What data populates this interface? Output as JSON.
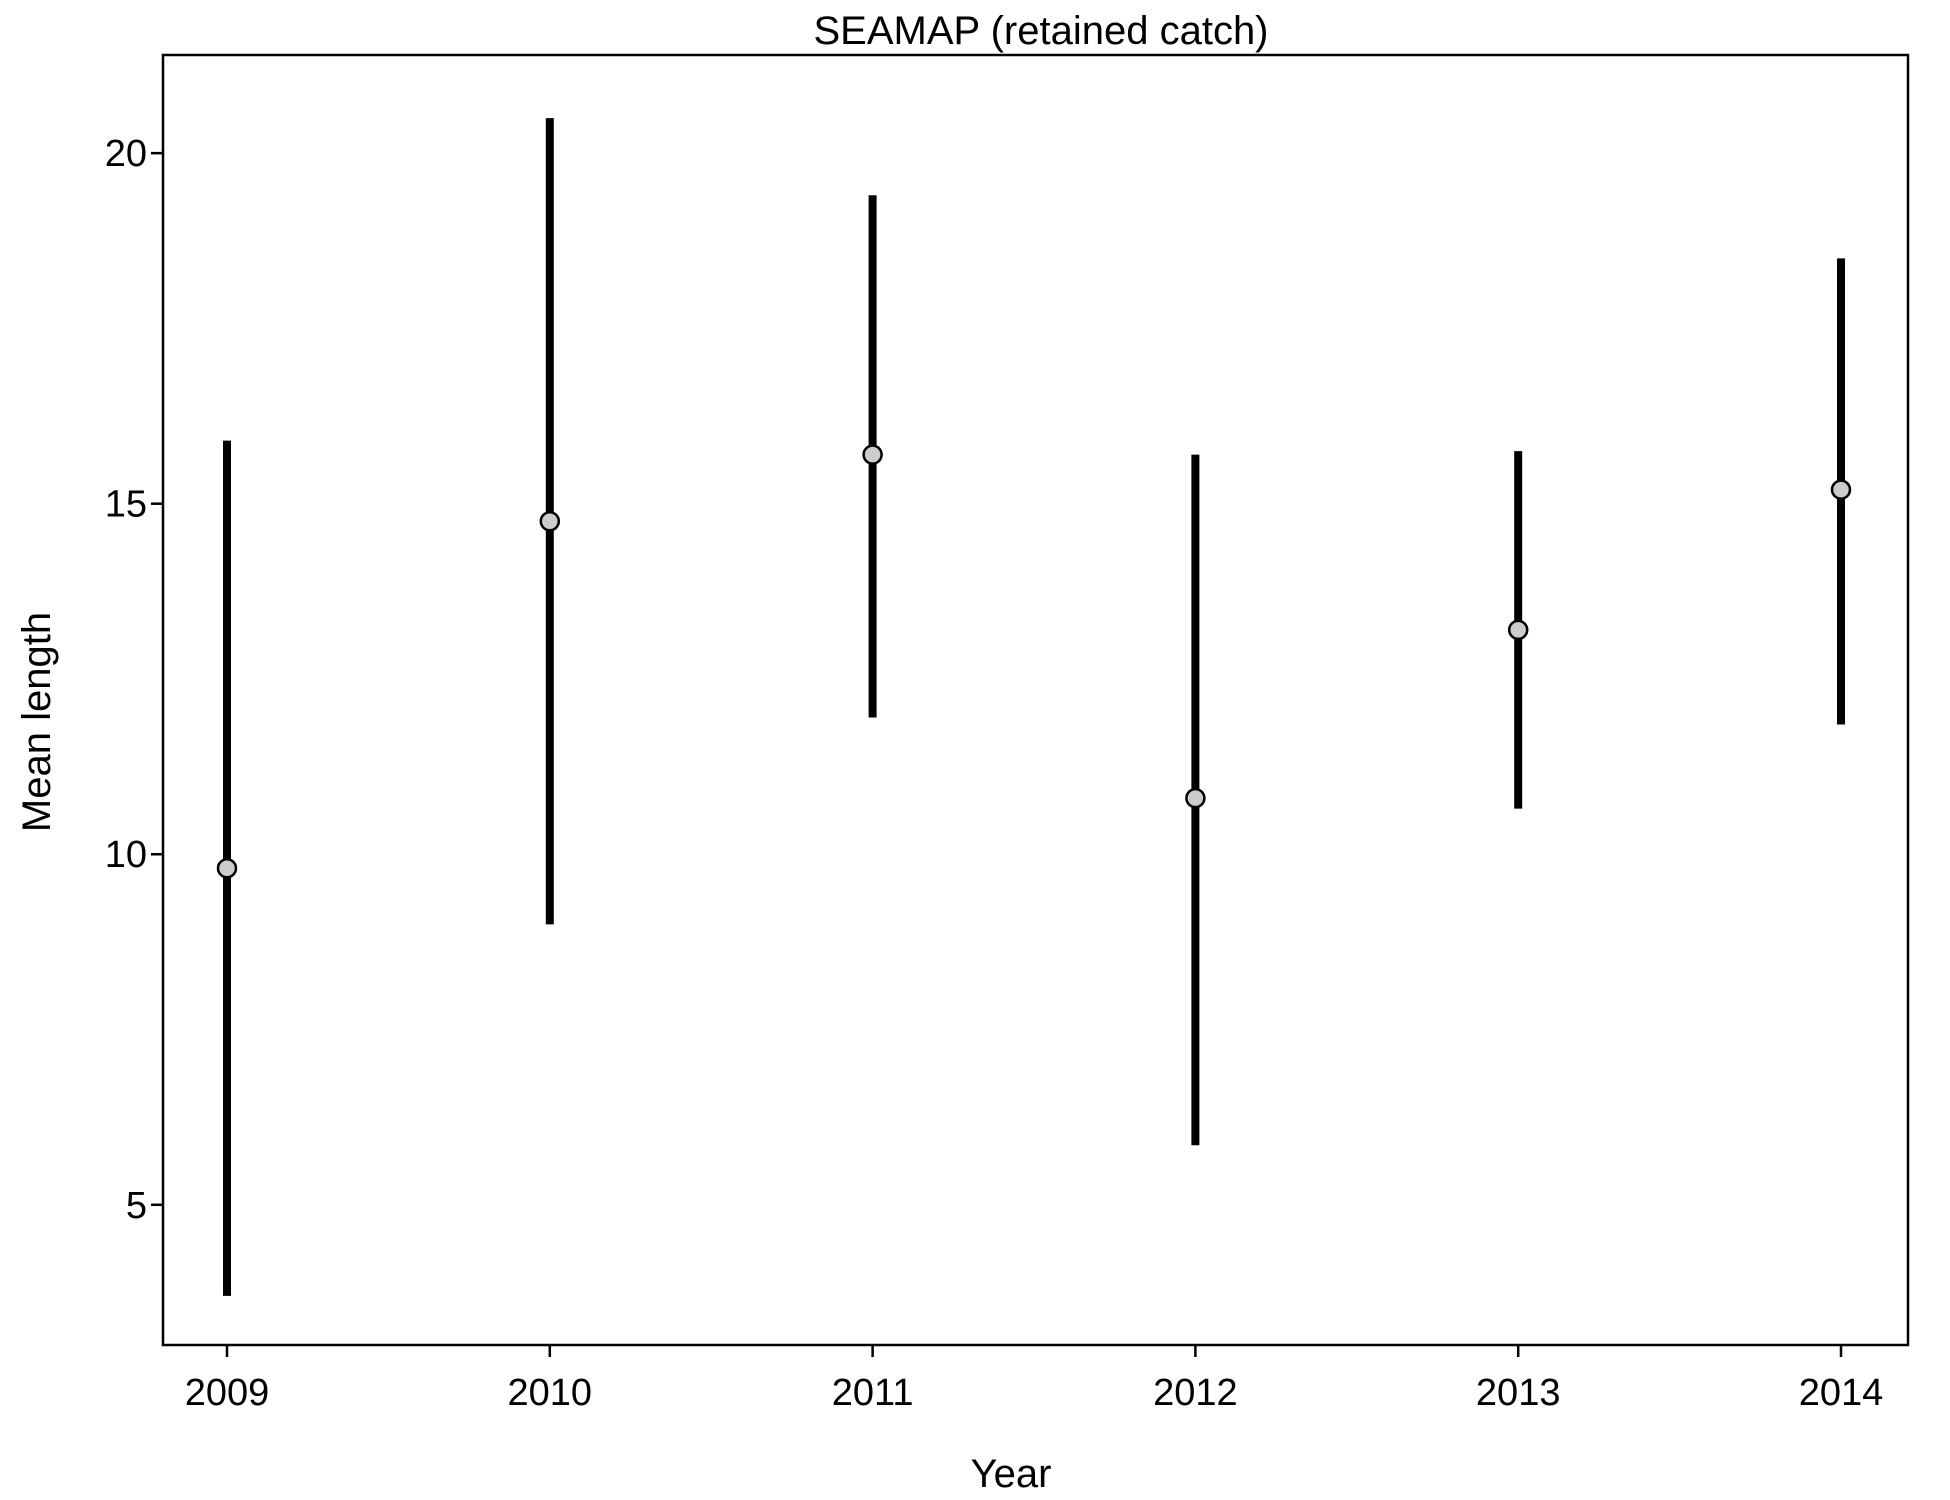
{
  "chart_data": {
    "type": "scatter",
    "title": "SEAMAP (retained catch)",
    "xlabel": "Year",
    "ylabel": "Mean length",
    "categories": [
      "2009",
      "2010",
      "2011",
      "2012",
      "2013",
      "2014"
    ],
    "series": [
      {
        "values": [
          9.8,
          14.75,
          15.7,
          10.8,
          13.2,
          15.2
        ],
        "lower": [
          3.7,
          9.0,
          11.95,
          5.85,
          10.65,
          11.85
        ],
        "upper": [
          15.9,
          20.5,
          19.4,
          15.7,
          15.75,
          18.5
        ]
      }
    ],
    "yticks": [
      5,
      10,
      15,
      20
    ],
    "ylim": [
      3.0,
      21.4
    ],
    "grid": false,
    "colors": {
      "point_fill": "#cccccc",
      "line": "#000000"
    }
  }
}
